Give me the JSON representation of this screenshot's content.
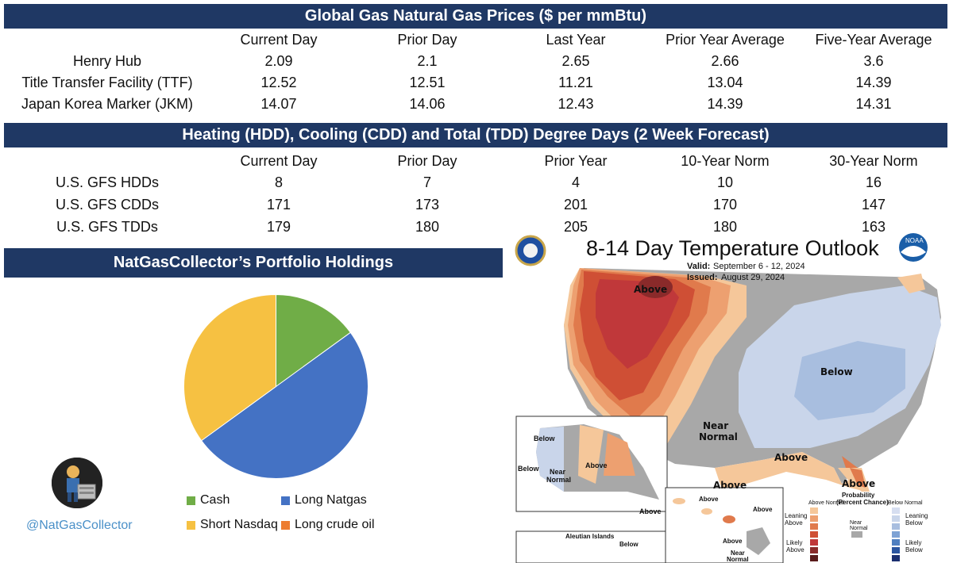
{
  "prices": {
    "title": "Global Gas Natural Gas Prices ($ per mmBtu)",
    "columns": [
      "Current Day",
      "Prior Day",
      "Last Year",
      "Prior Year Average",
      "Five-Year Average"
    ],
    "rows": [
      {
        "label": "Henry Hub",
        "values": [
          "2.09",
          "2.1",
          "2.65",
          "2.66",
          "3.6"
        ]
      },
      {
        "label": "Title Transfer Facility (TTF)",
        "values": [
          "12.52",
          "12.51",
          "11.21",
          "13.04",
          "14.39"
        ]
      },
      {
        "label": "Japan Korea Marker (JKM)",
        "values": [
          "14.07",
          "14.06",
          "12.43",
          "14.39",
          "14.31"
        ]
      }
    ]
  },
  "degree_days": {
    "title": "Heating (HDD), Cooling (CDD) and Total (TDD) Degree Days (2 Week Forecast)",
    "columns": [
      "Current Day",
      "Prior Day",
      "Prior Year",
      "10-Year Norm",
      "30-Year Norm"
    ],
    "rows": [
      {
        "label": "U.S. GFS HDDs",
        "values": [
          "8",
          "7",
          "4",
          "10",
          "16"
        ]
      },
      {
        "label": "U.S. GFS CDDs",
        "values": [
          "171",
          "173",
          "201",
          "170",
          "147"
        ]
      },
      {
        "label": "U.S. GFS TDDs",
        "values": [
          "179",
          "180",
          "205",
          "180",
          "163"
        ]
      }
    ]
  },
  "portfolio": {
    "title": "NatGasCollector’s Portfolio Holdings",
    "handle": "@NatGasCollector"
  },
  "chart_data": {
    "type": "pie",
    "categories": [
      "Cash",
      "Long Natgas",
      "Short Nasdaq",
      "Long crude oil"
    ],
    "values": [
      15,
      50,
      35,
      0
    ],
    "colors": [
      "#70ad47",
      "#4472c4",
      "#f6c142",
      "#ed7d31"
    ],
    "legend_placement": "bottom"
  },
  "outlook": {
    "title": "8-14 Day Temperature Outlook",
    "valid_label": "Valid:",
    "valid_value": "September 6 - 12, 2024",
    "issued_label": "Issued:",
    "issued_value": "August 29, 2024",
    "above": "Above",
    "below": "Below",
    "near_normal_1": "Near",
    "near_normal_2": "Normal",
    "aleutian": "Aleutian Islands",
    "prob_title": "Probability",
    "prob_sub": "(Percent Chance)",
    "above_normal": "Above Normal",
    "below_normal": "Below Normal",
    "leaning_above": "Leaning Above",
    "likely_above": "Likely Above",
    "leaning_below": "Leaning Below",
    "likely_below": "Likely Below",
    "near_normal": "Near Normal",
    "noaa": "NOAA"
  }
}
